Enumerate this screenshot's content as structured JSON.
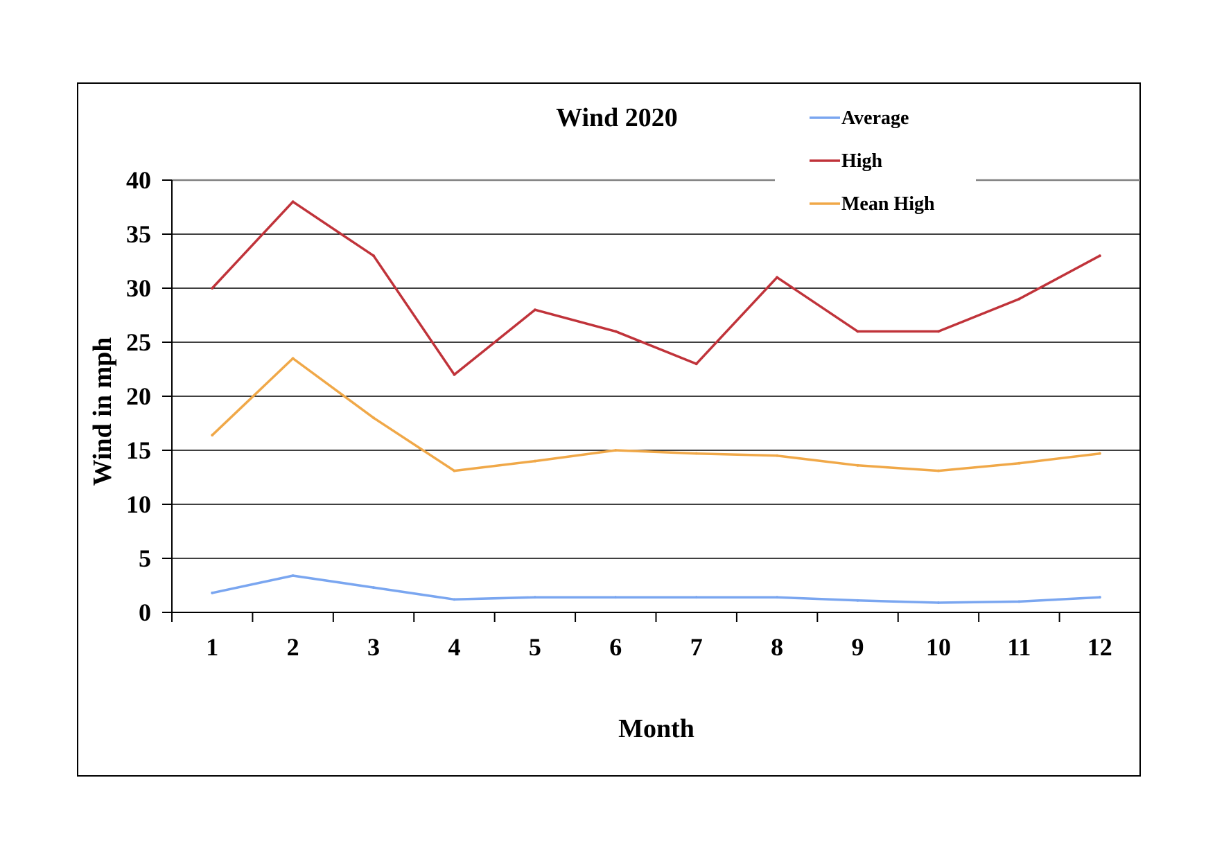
{
  "chart_data": {
    "type": "line",
    "title": "Wind 2020",
    "xlabel": "Month",
    "ylabel": "Wind in mph",
    "x": [
      1,
      2,
      3,
      4,
      5,
      6,
      7,
      8,
      9,
      10,
      11,
      12
    ],
    "ylim": [
      0,
      40
    ],
    "yticks": [
      0,
      5,
      10,
      15,
      20,
      25,
      30,
      35,
      40
    ],
    "grid": true,
    "legend_position": "top-right",
    "series": [
      {
        "name": "Average",
        "color": "#7aa6f0",
        "values": [
          1.8,
          3.4,
          2.3,
          1.2,
          1.4,
          1.4,
          1.4,
          1.4,
          1.1,
          0.9,
          1.0,
          1.4
        ]
      },
      {
        "name": "High",
        "color": "#c0333a",
        "values": [
          30,
          38,
          33,
          22,
          28,
          26,
          23,
          31,
          26,
          26,
          29,
          33
        ]
      },
      {
        "name": "Mean High",
        "color": "#f0a848",
        "values": [
          16.4,
          23.5,
          18.0,
          13.1,
          14.0,
          15.0,
          14.7,
          14.5,
          13.6,
          13.1,
          13.8,
          14.7
        ]
      }
    ]
  }
}
